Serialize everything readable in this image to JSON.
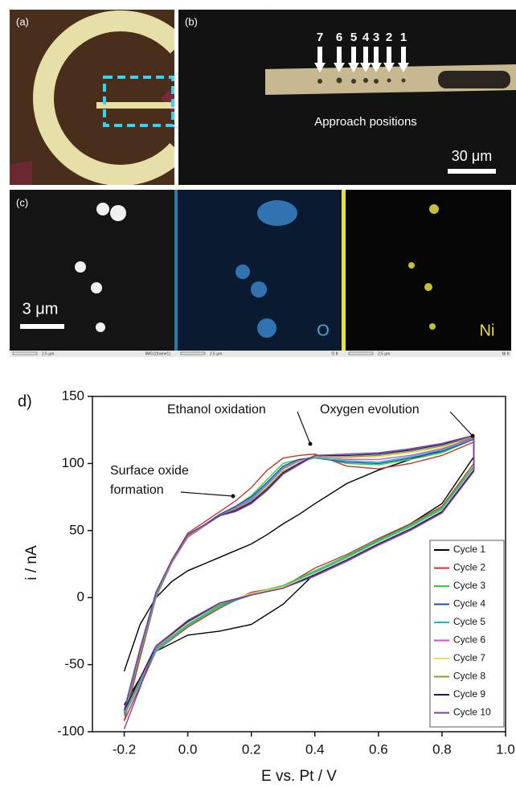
{
  "panels": {
    "a": {
      "label": "(a)"
    },
    "b": {
      "label": "(b)",
      "labels": [
        "7",
        "6",
        "5",
        "4",
        "3",
        "2",
        "1"
      ],
      "caption": "Approach positions",
      "scale": "30 μm"
    },
    "c": {
      "label": "(c)",
      "scale": "3 μm",
      "element_o": "O",
      "element_ni": "Ni",
      "bar_labels": [
        "2.5 μm",
        "2.5 μm",
        "2.5 μm"
      ],
      "frame_labels": [
        "IMG1(frame1)",
        "O K",
        "Ni K"
      ]
    }
  },
  "chart_data": {
    "type": "line",
    "panel_label": "d)",
    "xlabel": "E vs. Pt / V",
    "ylabel": "i / nA",
    "annotations": [
      "Ethanol oxidation",
      "Oxygen evolution",
      "Surface oxide",
      "formation"
    ],
    "xlim": [
      -0.3,
      1.0
    ],
    "ylim": [
      -100,
      150
    ],
    "xticks": [
      -0.2,
      {
        "value": 0,
        "label": "0.0"
      },
      0.2,
      0.4,
      0.6,
      0.8,
      {
        "value": 1,
        "label": "1.0"
      }
    ],
    "yticks": [
      -100,
      -50,
      0,
      50,
      100,
      150
    ],
    "x": [
      -0.2,
      -0.15,
      -0.1,
      -0.05,
      0,
      0.1,
      0.15,
      0.2,
      0.25,
      0.3,
      0.35,
      0.4,
      0.5,
      0.6,
      0.7,
      0.8,
      0.9,
      0.9,
      0.8,
      0.7,
      0.6,
      0.5,
      0.4,
      0.3,
      0.2,
      0.1,
      0,
      -0.1,
      -0.2
    ],
    "series": [
      {
        "name": "Cycle 1",
        "color": "#000000",
        "values": [
          -55,
          -20,
          0,
          12,
          20,
          30,
          35,
          40,
          47,
          55,
          62,
          70,
          85,
          95,
          103,
          110,
          120,
          105,
          70,
          55,
          43,
          30,
          18,
          -5,
          -20,
          -25,
          -28,
          -40,
          -80
        ]
      },
      {
        "name": "Cycle 2",
        "color": "#c0392b",
        "values": [
          -92,
          -45,
          0,
          28,
          48,
          64,
          72,
          82,
          95,
          104,
          106,
          107,
          98,
          96,
          100,
          106,
          116,
          100,
          68,
          55,
          44,
          32,
          22,
          8,
          4,
          -8,
          -22,
          -40,
          -92
        ]
      },
      {
        "name": "Cycle 3",
        "color": "#2ecc40",
        "values": [
          -88,
          -42,
          0,
          26,
          45,
          62,
          68,
          76,
          88,
          100,
          103,
          105,
          100,
          99,
          103,
          108,
          118,
          98,
          67,
          54,
          43,
          31,
          20,
          9,
          3,
          -7,
          -21,
          -40,
          -88
        ]
      },
      {
        "name": "Cycle 4",
        "color": "#1f4fa0",
        "values": [
          -86,
          -40,
          2,
          27,
          46,
          62,
          68,
          75,
          86,
          98,
          103,
          104,
          101,
          100,
          104,
          109,
          118,
          97,
          66,
          53,
          42,
          30,
          19,
          8,
          2,
          -6,
          -20,
          -38,
          -86
        ]
      },
      {
        "name": "Cycle 5",
        "color": "#1abcd4",
        "values": [
          -87,
          -41,
          1,
          26,
          45,
          61,
          67,
          74,
          85,
          97,
          102,
          104,
          102,
          101,
          105,
          110,
          119,
          97,
          66,
          53,
          42,
          30,
          19,
          8,
          3,
          -6,
          -20,
          -39,
          -87
        ]
      },
      {
        "name": "Cycle 6",
        "color": "#d24fd6",
        "values": [
          -86,
          -40,
          2,
          26,
          45,
          61,
          67,
          73,
          84,
          96,
          102,
          105,
          103,
          103,
          106,
          111,
          119,
          96,
          65,
          52,
          41,
          29,
          18,
          8,
          3,
          -5,
          -19,
          -38,
          -86
        ]
      },
      {
        "name": "Cycle 7",
        "color": "#f0e050",
        "values": [
          -85,
          -39,
          3,
          27,
          46,
          61,
          66,
          72,
          83,
          95,
          101,
          105,
          104,
          105,
          108,
          112,
          120,
          96,
          65,
          52,
          41,
          29,
          18,
          8,
          3,
          -5,
          -19,
          -37,
          -85
        ]
      },
      {
        "name": "Cycle 8",
        "color": "#8a9a30",
        "values": [
          -85,
          -39,
          3,
          27,
          46,
          61,
          66,
          72,
          82,
          94,
          100,
          105,
          105,
          106,
          109,
          113,
          120,
          95,
          64,
          51,
          40,
          28,
          17,
          7,
          2,
          -5,
          -18,
          -37,
          -85
        ]
      },
      {
        "name": "Cycle 9",
        "color": "#1a1a70",
        "values": [
          -84,
          -38,
          4,
          28,
          47,
          61,
          65,
          71,
          81,
          93,
          100,
          106,
          106,
          107,
          110,
          114,
          121,
          95,
          64,
          51,
          40,
          28,
          17,
          7,
          2,
          -4,
          -18,
          -36,
          -84
        ]
      },
      {
        "name": "Cycle 10",
        "color": "#7a3fb0",
        "values": [
          -84,
          -38,
          4,
          28,
          47,
          61,
          64,
          70,
          80,
          92,
          99,
          106,
          107,
          108,
          111,
          115,
          121,
          94,
          63,
          50,
          39,
          27,
          16,
          7,
          2,
          -4,
          -17,
          -36,
          -98
        ]
      }
    ]
  }
}
